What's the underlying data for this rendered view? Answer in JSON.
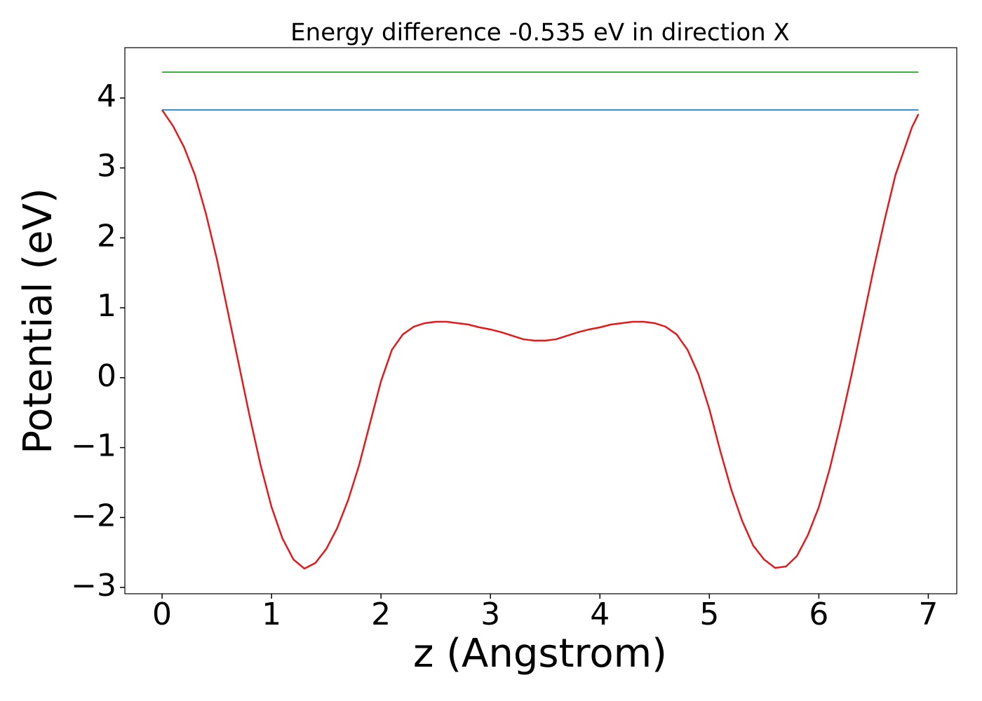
{
  "chart_data": {
    "type": "line",
    "title": "Energy difference -0.535 eV in direction X",
    "xlabel": "z (Angstrom)",
    "ylabel": "Potential (eV)",
    "xlim": [
      -0.34,
      7.26
    ],
    "ylim": [
      -3.09,
      4.72
    ],
    "xticks": [
      0,
      1,
      2,
      3,
      4,
      5,
      6,
      7
    ],
    "yticks": [
      {
        "value": -3,
        "label": "−3"
      },
      {
        "value": -2,
        "label": "−2"
      },
      {
        "value": -1,
        "label": "−1"
      },
      0,
      1,
      2,
      3,
      4
    ],
    "grid": false,
    "series": [
      {
        "color": "#2ca02c",
        "x": [
          0,
          6.91
        ],
        "values": [
          4.37,
          4.37
        ]
      },
      {
        "color": "#1f77b4",
        "x": [
          0,
          6.91
        ],
        "values": [
          3.83,
          3.83
        ]
      },
      {
        "color": "#e31a1c",
        "x": [
          0,
          0.1,
          0.2,
          0.3,
          0.4,
          0.5,
          0.6,
          0.7,
          0.8,
          0.9,
          1.0,
          1.1,
          1.2,
          1.3,
          1.4,
          1.5,
          1.6,
          1.7,
          1.8,
          1.9,
          2.0,
          2.1,
          2.2,
          2.3,
          2.4,
          2.5,
          2.6,
          2.7,
          2.8,
          2.9,
          3.0,
          3.1,
          3.2,
          3.3,
          3.4,
          3.5,
          3.6,
          3.7,
          3.8,
          3.9,
          4.0,
          4.1,
          4.2,
          4.3,
          4.4,
          4.5,
          4.6,
          4.7,
          4.8,
          4.9,
          5.0,
          5.1,
          5.2,
          5.3,
          5.4,
          5.5,
          5.6,
          5.7,
          5.8,
          5.9,
          6.0,
          6.1,
          6.2,
          6.3,
          6.4,
          6.5,
          6.6,
          6.7,
          6.8,
          6.85,
          6.91
        ],
        "values": [
          3.83,
          3.6,
          3.3,
          2.9,
          2.35,
          1.7,
          0.95,
          0.2,
          -0.55,
          -1.25,
          -1.85,
          -2.3,
          -2.6,
          -2.73,
          -2.65,
          -2.45,
          -2.15,
          -1.75,
          -1.25,
          -0.65,
          -0.05,
          0.4,
          0.62,
          0.73,
          0.78,
          0.8,
          0.8,
          0.78,
          0.76,
          0.72,
          0.69,
          0.65,
          0.6,
          0.55,
          0.53,
          0.53,
          0.55,
          0.6,
          0.65,
          0.69,
          0.72,
          0.76,
          0.78,
          0.8,
          0.8,
          0.78,
          0.73,
          0.62,
          0.4,
          0.05,
          -0.45,
          -1.05,
          -1.6,
          -2.05,
          -2.4,
          -2.6,
          -2.72,
          -2.7,
          -2.55,
          -2.25,
          -1.85,
          -1.3,
          -0.65,
          0.05,
          0.8,
          1.55,
          2.25,
          2.9,
          3.35,
          3.58,
          3.77
        ]
      }
    ]
  }
}
